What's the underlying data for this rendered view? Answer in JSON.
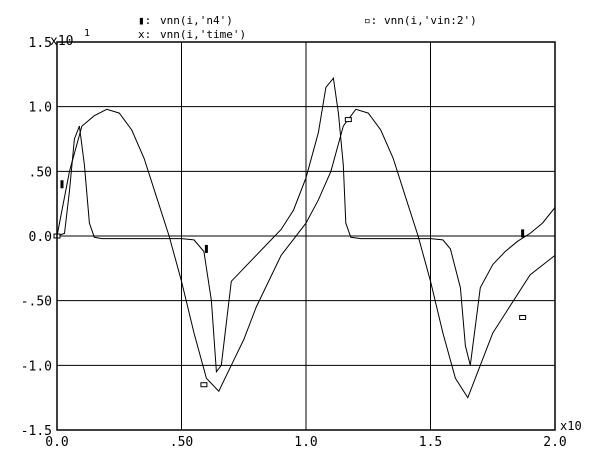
{
  "chart_data": {
    "type": "line",
    "title": "",
    "xlabel": "",
    "ylabel": "",
    "y_scale_label": "x10",
    "y_scale_exp": "1",
    "x_scale_label": "x10",
    "xlim": [
      0.0,
      2.0
    ],
    "ylim": [
      -1.5,
      1.5
    ],
    "grid": true,
    "legend_position": "top",
    "x_ticks": [
      {
        "value": 0.0,
        "label": "0.0"
      },
      {
        "value": 0.5,
        "label": ".50"
      },
      {
        "value": 1.0,
        "label": "1.0"
      },
      {
        "value": 1.5,
        "label": "1.5"
      },
      {
        "value": 2.0,
        "label": "2.0"
      }
    ],
    "y_ticks": [
      {
        "value": 1.5,
        "label": "1.5"
      },
      {
        "value": 1.0,
        "label": "1.0"
      },
      {
        "value": 0.5,
        "label": ".50"
      },
      {
        "value": 0.0,
        "label": "0.0"
      },
      {
        "value": -0.5,
        "label": "-.50"
      },
      {
        "value": -1.0,
        "label": "-1.0"
      },
      {
        "value": -1.5,
        "label": "-1.5"
      }
    ],
    "legend": [
      {
        "marker": "bar",
        "label": "vnn(i,'n4')"
      },
      {
        "marker": "square",
        "label": "vnn(i,'vin:2')"
      },
      {
        "marker": "cross",
        "label": "vnn(i,'time')"
      }
    ],
    "series": [
      {
        "marker": "square",
        "x": [
          0.0,
          0.02,
          0.05,
          0.1,
          0.15,
          0.2,
          0.25,
          0.3,
          0.35,
          0.4,
          0.45,
          0.5,
          0.55,
          0.6,
          0.65,
          0.7,
          0.75,
          0.8,
          0.9,
          1.0,
          1.05,
          1.1,
          1.15,
          1.2,
          1.25,
          1.3,
          1.35,
          1.4,
          1.45,
          1.5,
          1.55,
          1.6,
          1.65,
          1.7,
          1.75,
          1.8,
          1.9,
          2.0
        ],
        "y": [
          0.0,
          0.2,
          0.5,
          0.85,
          0.93,
          0.98,
          0.95,
          0.82,
          0.6,
          0.3,
          0.0,
          -0.35,
          -0.75,
          -1.1,
          -1.2,
          -1.0,
          -0.8,
          -0.55,
          -0.15,
          0.1,
          0.28,
          0.5,
          0.85,
          0.98,
          0.95,
          0.82,
          0.6,
          0.3,
          0.0,
          -0.35,
          -0.75,
          -1.1,
          -1.25,
          -1.0,
          -0.75,
          -0.6,
          -0.3,
          -0.15
        ]
      },
      {
        "marker": "bar",
        "x": [
          0.0,
          0.03,
          0.05,
          0.07,
          0.09,
          0.11,
          0.13,
          0.15,
          0.18,
          0.22,
          0.3,
          0.4,
          0.5,
          0.55,
          0.59,
          0.62,
          0.64,
          0.66,
          0.7,
          0.75,
          0.8,
          0.85,
          0.9,
          0.95,
          1.0,
          1.05,
          1.08,
          1.11,
          1.13,
          1.15,
          1.16,
          1.18,
          1.22,
          1.3,
          1.4,
          1.5,
          1.55,
          1.58,
          1.62,
          1.64,
          1.66,
          1.7,
          1.75,
          1.8,
          1.85,
          1.9,
          1.95,
          2.0
        ],
        "y": [
          0.0,
          0.02,
          0.35,
          0.75,
          0.85,
          0.55,
          0.1,
          -0.01,
          -0.02,
          -0.02,
          -0.02,
          -0.02,
          -0.02,
          -0.03,
          -0.12,
          -0.5,
          -1.05,
          -1.0,
          -0.35,
          -0.25,
          -0.15,
          -0.05,
          0.05,
          0.2,
          0.45,
          0.8,
          1.15,
          1.22,
          0.95,
          0.55,
          0.1,
          -0.01,
          -0.02,
          -0.02,
          -0.02,
          -0.02,
          -0.03,
          -0.1,
          -0.4,
          -0.85,
          -1.0,
          -0.4,
          -0.22,
          -0.12,
          -0.04,
          0.02,
          0.1,
          0.22
        ]
      }
    ],
    "markers": [
      {
        "series": 1,
        "x": 0.02,
        "y": 0.4
      },
      {
        "series": 0,
        "x": 0.0,
        "y": 0.0
      },
      {
        "series": 0,
        "x": 0.59,
        "y": -1.15
      },
      {
        "series": 1,
        "x": 0.6,
        "y": -0.1
      },
      {
        "series": 0,
        "x": 1.17,
        "y": 0.9
      },
      {
        "series": 1,
        "x": 1.87,
        "y": 0.02
      },
      {
        "series": 0,
        "x": 1.87,
        "y": -0.63
      }
    ]
  }
}
